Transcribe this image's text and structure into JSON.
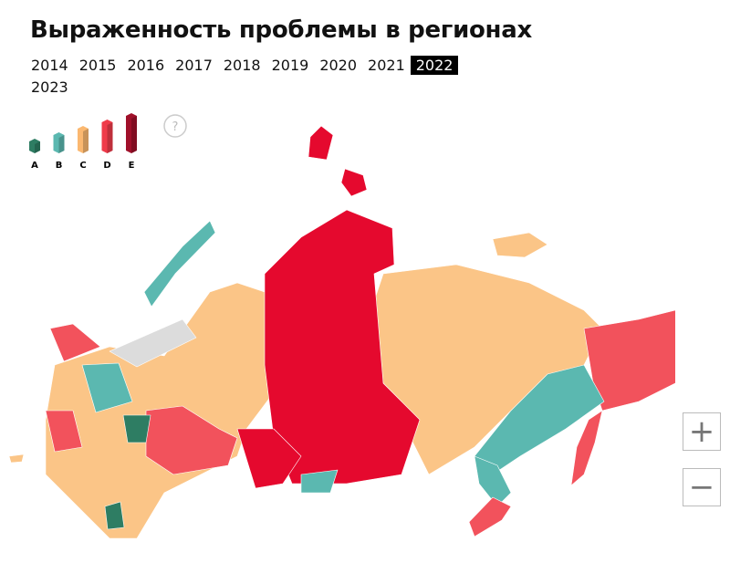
{
  "header": {
    "title": "Выраженность проблемы в регионах"
  },
  "years": {
    "items": [
      "2014",
      "2015",
      "2016",
      "2017",
      "2018",
      "2019",
      "2020",
      "2021",
      "2022",
      "2023"
    ],
    "selected_index": 8
  },
  "legend": {
    "items": [
      {
        "label": "A",
        "color": "#2e7d63"
      },
      {
        "label": "B",
        "color": "#5bb8b0"
      },
      {
        "label": "C",
        "color": "#fbb870"
      },
      {
        "label": "D",
        "color": "#ef3b4a"
      },
      {
        "label": "E",
        "color": "#a0102a"
      }
    ]
  },
  "help": "?",
  "zoom": {
    "in": "+",
    "out": "−"
  }
}
